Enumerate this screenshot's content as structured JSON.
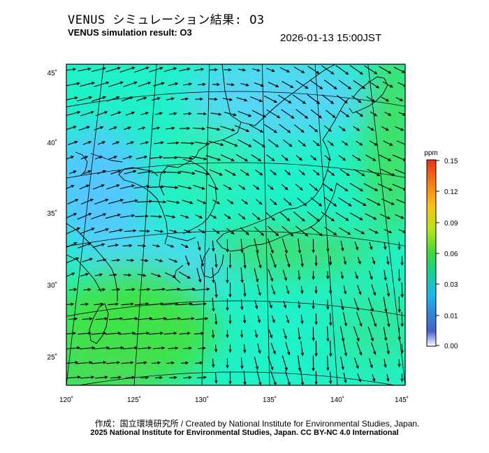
{
  "header": {
    "title_jp": "VENUS シミュレーション結果: O3",
    "title_en": "VENUS simulation result: O3",
    "timestamp": "2026-01-13 15:00JST"
  },
  "map": {
    "lon_range": [
      120,
      145
    ],
    "lat_range": [
      23,
      46
    ],
    "lon_ticks": [
      "120˚",
      "125˚",
      "130˚",
      "135˚",
      "140˚",
      "145˚"
    ],
    "lat_ticks": [
      "25˚",
      "30˚",
      "35˚",
      "40˚",
      "45˚"
    ],
    "field_colors": {
      "low": "#52dcff",
      "mid": "#1ff1c8",
      "high": "#3fe24a"
    },
    "wind_direction": "northwesterly",
    "coastline_color": "#000000"
  },
  "colorbar": {
    "unit": "ppm",
    "ticks": [
      "0.15",
      "0.12",
      "0.09",
      "0.06",
      "0.03",
      "0.01",
      "0.00"
    ],
    "colors_top_to_bottom": [
      "#e8341c",
      "#f47a17",
      "#f6c419",
      "#b8e21a",
      "#42d63e",
      "#1ccf8a",
      "#1fb8e8",
      "#2f8ad8",
      "#4a5fcc",
      "#ffffff"
    ]
  },
  "footer": {
    "credit_line1": "作成：国立環境研究所 / Created by National Institute for Environmental Studies, Japan.",
    "credit_line2": "2025 National Institute for Environmental Studies, Japan. CC BY-NC 4.0 International"
  }
}
